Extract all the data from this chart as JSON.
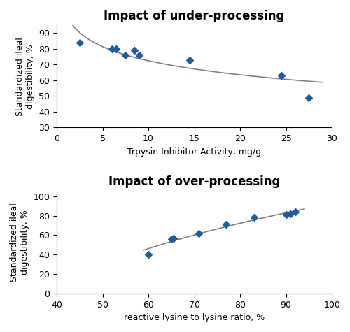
{
  "top": {
    "title": "Impact of under-processing",
    "xlabel": "Trpysin Inhibitor Activity, mg/g",
    "ylabel": "Standardized ileal\ndigestibility, %",
    "xlim": [
      0,
      30
    ],
    "ylim": [
      30,
      95
    ],
    "yticks": [
      30,
      40,
      50,
      60,
      70,
      80,
      90
    ],
    "xticks": [
      0,
      5,
      10,
      15,
      20,
      25,
      30
    ],
    "x_data": [
      2.5,
      6.0,
      6.5,
      7.5,
      8.5,
      9.0,
      14.5,
      24.5,
      27.5
    ],
    "y_data": [
      84,
      80,
      80,
      76,
      79,
      76,
      73,
      63,
      49
    ],
    "marker_color": "#1F5C9E",
    "line_color": "#808080"
  },
  "bottom": {
    "title": "Impact of over-processing",
    "xlabel": "reactive lysine to lysine ratio, %",
    "ylabel": "Standardized ileal\ndigestibility, %",
    "xlim": [
      40,
      100
    ],
    "ylim": [
      0,
      105
    ],
    "yticks": [
      0,
      20,
      40,
      60,
      80,
      100
    ],
    "xticks": [
      40,
      50,
      60,
      70,
      80,
      90,
      100
    ],
    "x_data": [
      60,
      65,
      65.5,
      71,
      77,
      83,
      90,
      91,
      92
    ],
    "y_data": [
      40,
      56,
      57,
      62,
      71,
      78,
      81,
      82,
      84
    ],
    "marker_color": "#1F5C9E",
    "line_color": "#808080"
  },
  "figure_bg": "#ffffff",
  "title_fontsize": 12,
  "label_fontsize": 9,
  "tick_fontsize": 9
}
